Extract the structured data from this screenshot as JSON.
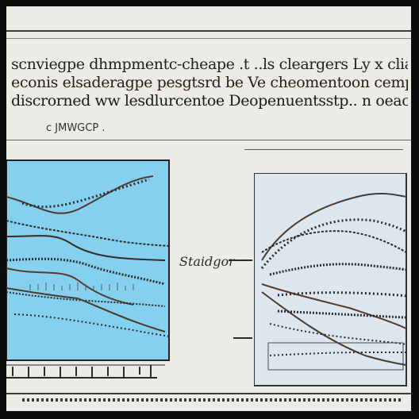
{
  "text": {
    "lines": [
      "scnviegpe dhmpmentc-cheape .t ..ls cleargers Ly x cliampgecn",
      "econis elsaderagpe pesgtsrd be Ve cheomentoon cempopu",
      "discrorned ww lesdlurcentoe Deopenuentsstp.. n oeachutenm"
    ],
    "caption": "c JMWGCP .",
    "mid_label": "Staidgor"
  },
  "colors": {
    "left_panel_fill": "#84d0ee",
    "right_panel_fill": "#dde6ee",
    "ink": "#2a2a2a",
    "curve_brown": "#5a3a2a"
  }
}
